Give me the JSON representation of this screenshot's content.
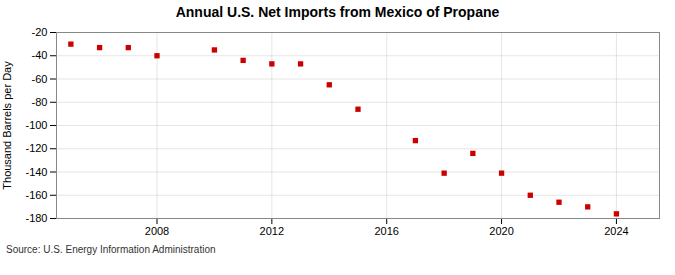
{
  "chart_data": {
    "type": "scatter",
    "title": "Annual U.S. Net Imports from Mexico of Propane",
    "ylabel": "Thousand Barrels per Day",
    "source": "Source: U.S. Energy Information Administration",
    "x": [
      2005,
      2006,
      2007,
      2008,
      2010,
      2011,
      2012,
      2013,
      2014,
      2015,
      2017,
      2018,
      2019,
      2020,
      2021,
      2022,
      2023,
      2024
    ],
    "values": [
      -30,
      -33,
      -33,
      -40,
      -35,
      -44,
      -47,
      -47,
      -65,
      -86,
      -113,
      -141,
      -124,
      -141,
      -160,
      -166,
      -170,
      -176
    ],
    "color": "#cc0000",
    "marker": "square",
    "xlim": [
      2004.5,
      2025.5
    ],
    "xticks": [
      2008,
      2012,
      2016,
      2020,
      2024
    ],
    "ylim": [
      -180,
      -20
    ],
    "yticks": [
      -180,
      -160,
      -140,
      -120,
      -100,
      -80,
      -60,
      -40,
      -20
    ],
    "grid": true
  }
}
